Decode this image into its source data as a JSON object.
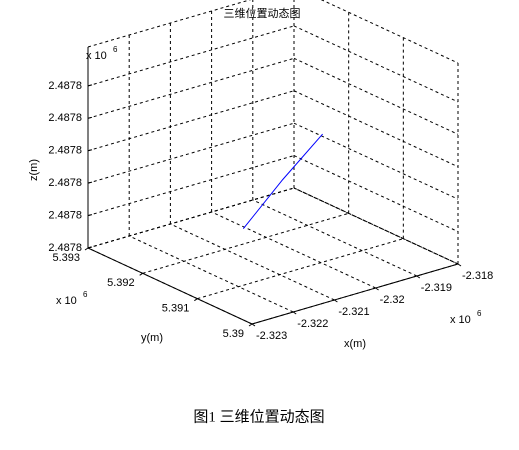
{
  "chart_data": {
    "type": "line3d",
    "title": "三维位置动态图",
    "caption": "图1  三维位置动态图",
    "xlabel": "x(m)",
    "ylabel": "y(m)",
    "zlabel": "z(m)",
    "x_multiplier": {
      "base": "x 10",
      "exp": "6"
    },
    "y_multiplier": {
      "base": "x 10",
      "exp": "6"
    },
    "z_multiplier": {
      "base": "x 10",
      "exp": "6"
    },
    "xlim": [
      -2.323,
      -2.318
    ],
    "xticks": [
      -2.323,
      -2.322,
      -2.321,
      -2.32,
      -2.319,
      -2.318
    ],
    "ylim": [
      5.39,
      5.393
    ],
    "yticks": [
      5.39,
      5.391,
      5.392,
      5.393
    ],
    "zlim": [
      2.48776,
      2.487822
    ],
    "zticks": [
      {
        "value": 2.48776,
        "label": "2.4878"
      },
      {
        "value": 2.48777,
        "label": "2.4878"
      },
      {
        "value": 2.48778,
        "label": "2.4878"
      },
      {
        "value": 2.48779,
        "label": "2.4878"
      },
      {
        "value": 2.4878,
        "label": "2.4878"
      },
      {
        "value": 2.48781,
        "label": "2.4878"
      }
    ],
    "grid": true,
    "series": [
      {
        "color": "#0000ff",
        "x": [
          -2.32069,
          -2.31988,
          -2.31907
        ],
        "y": [
          5.3919,
          5.39179,
          5.39167
        ],
        "z": [
          2.487766,
          2.487779,
          2.487791
        ]
      }
    ]
  }
}
